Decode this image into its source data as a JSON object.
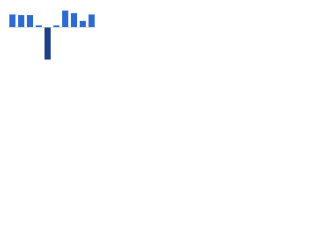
{
  "chart_data": {
    "type": "bar",
    "categories": [
      null,
      null,
      null,
      null,
      null,
      null,
      null,
      null,
      null,
      null
    ],
    "values": [
      2,
      1.9,
      1.9,
      0.3,
      -5,
      0.3,
      2.6,
      2.2,
      1,
      2
    ],
    "colors": [
      "#2e6bd1",
      "#2e6bd1",
      "#2e6bd1",
      "#2e6bd1",
      "#1c3f86",
      "#2e6bd1",
      "#2e6bd1",
      "#2e6bd1",
      "#2e6bd1",
      "#2e6bd1"
    ],
    "ylim": [
      -6,
      3
    ]
  }
}
